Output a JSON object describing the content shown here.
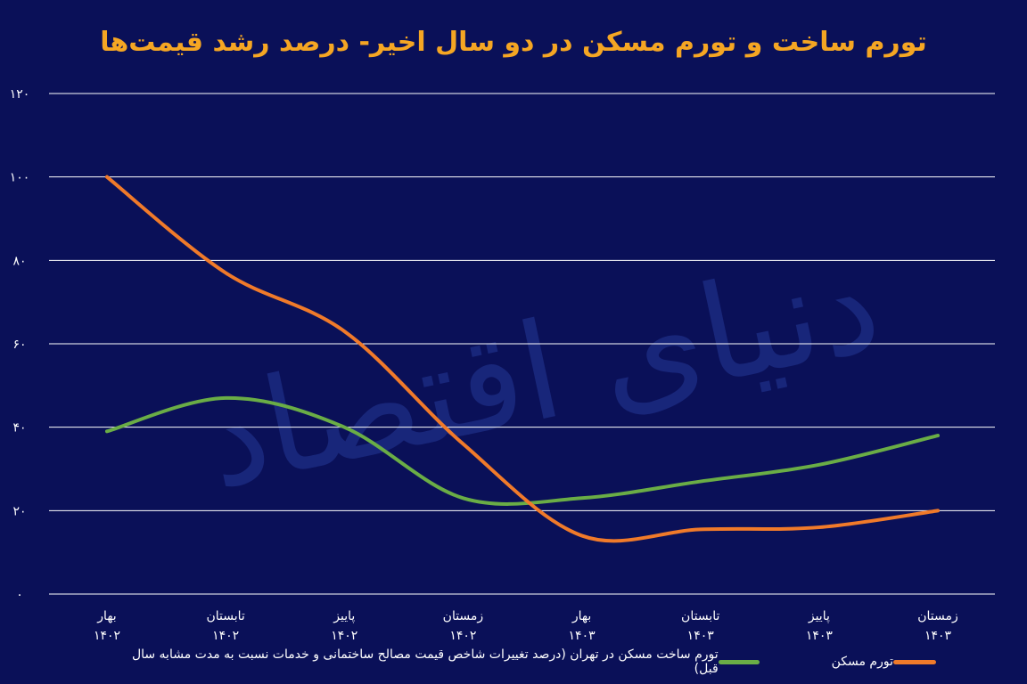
{
  "chart_data": {
    "type": "line",
    "title": "تورم ساخت و تورم مسکن در دو سال اخیر- درصد رشد قیمت‌ها",
    "categories": [
      [
        "بهار",
        "۱۴۰۲"
      ],
      [
        "تابستان",
        "۱۴۰۲"
      ],
      [
        "پاییز",
        "۱۴۰۲"
      ],
      [
        "زمستان",
        "۱۴۰۲"
      ],
      [
        "بهار",
        "۱۴۰۳"
      ],
      [
        "تابستان",
        "۱۴۰۳"
      ],
      [
        "پاییز",
        "۱۴۰۳"
      ],
      [
        "زمستان",
        "۱۴۰۳"
      ]
    ],
    "y_ticks": [
      "۰",
      "۲۰",
      "۴۰",
      "۶۰",
      "۸۰",
      "۱۰۰",
      "۱۲۰"
    ],
    "y_tick_values": [
      0,
      20,
      40,
      60,
      80,
      100,
      120
    ],
    "ylim": [
      0,
      120
    ],
    "grid": true,
    "legend_position": "bottom",
    "watermark": "دنیای اقتصاد",
    "series": [
      {
        "name": "تورم ساخت مسکن در تهران (درصد تغییرات شاخص قیمت مصالح ساختمانی و خدمات نسبت به مدت مشابه سال قبل)",
        "color": "#6aad46",
        "values": [
          39,
          47,
          40,
          23,
          23,
          27,
          31,
          38
        ]
      },
      {
        "name": "تورم مسکن",
        "color": "#f07a2a",
        "values": [
          100,
          77,
          63,
          36,
          14,
          15.5,
          16,
          20
        ]
      }
    ]
  },
  "colors": {
    "background": "#0a1058",
    "title": "#f5a623",
    "grid": "#ffffff",
    "text": "#ffffff"
  }
}
